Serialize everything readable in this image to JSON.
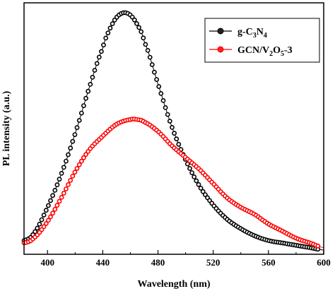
{
  "chart_data": {
    "type": "line",
    "xlabel": "Wavelength (nm)",
    "ylabel": "PL intensity (a.u.)",
    "xlim": [
      383,
      600
    ],
    "ylim": [
      0,
      1
    ],
    "xticks": [
      400,
      440,
      480,
      520,
      560,
      600
    ],
    "xtick_labels": [
      "400",
      "440",
      "480",
      "520",
      "560",
      "600"
    ],
    "yticks_visible": false,
    "grid": false,
    "legend_position": "top-right",
    "series": [
      {
        "name": "g-C3N4",
        "legend": {
          "base": "g-C",
          "sub1": "3",
          "mid": "N",
          "sub2": "4"
        },
        "color": "#000000",
        "marker": "circle",
        "x": [
          383,
          390,
          400,
          410,
          420,
          430,
          440,
          445,
          450,
          455,
          460,
          465,
          470,
          480,
          490,
          500,
          510,
          520,
          530,
          540,
          550,
          560,
          570,
          580,
          590,
          600
        ],
        "y": [
          0.04,
          0.07,
          0.18,
          0.32,
          0.49,
          0.68,
          0.85,
          0.93,
          0.98,
          1.0,
          0.99,
          0.95,
          0.88,
          0.7,
          0.52,
          0.38,
          0.27,
          0.19,
          0.13,
          0.09,
          0.06,
          0.04,
          0.03,
          0.02,
          0.01,
          0.0
        ]
      },
      {
        "name": "GCN/V2O5-3",
        "legend": {
          "base": "GCN/V",
          "sub1": "2",
          "mid": "O",
          "sub2": "5",
          "tail": "-3"
        },
        "color": "#ff0000",
        "marker": "circle",
        "x": [
          383,
          390,
          400,
          410,
          420,
          430,
          440,
          450,
          460,
          465,
          470,
          480,
          490,
          500,
          510,
          520,
          530,
          540,
          550,
          560,
          570,
          580,
          590,
          600
        ],
        "y": [
          0.03,
          0.05,
          0.12,
          0.22,
          0.33,
          0.42,
          0.48,
          0.53,
          0.55,
          0.55,
          0.54,
          0.5,
          0.44,
          0.39,
          0.34,
          0.28,
          0.22,
          0.18,
          0.15,
          0.11,
          0.08,
          0.05,
          0.03,
          0.01
        ]
      }
    ]
  }
}
